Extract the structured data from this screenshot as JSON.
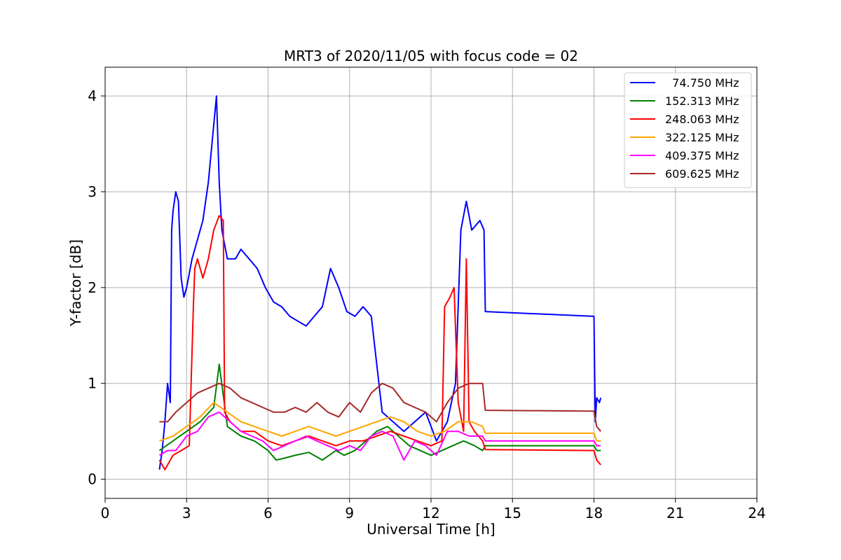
{
  "chart_data": {
    "type": "line",
    "title": "MRT3 of 2020/11/05 with focus code = 02",
    "xlabel": "Universal Time [h]",
    "ylabel": "Y-factor [dB]",
    "xlim": [
      0,
      24
    ],
    "ylim": [
      -0.2,
      4.3
    ],
    "xticks": [
      0,
      3,
      6,
      9,
      12,
      15,
      18,
      21,
      24
    ],
    "yticks": [
      0,
      1,
      2,
      3,
      4
    ],
    "grid": true,
    "legend_position": "top-right",
    "series": [
      {
        "name": "  74.750 MHz",
        "color": "#0000ff",
        "x": [
          2.0,
          2.1,
          2.2,
          2.3,
          2.4,
          2.45,
          2.5,
          2.6,
          2.7,
          2.8,
          2.9,
          3.0,
          3.2,
          3.4,
          3.6,
          3.8,
          4.0,
          4.1,
          4.2,
          4.3,
          4.5,
          4.8,
          5.0,
          5.3,
          5.6,
          5.9,
          6.2,
          6.5,
          6.8,
          7.1,
          7.4,
          7.7,
          8.0,
          8.3,
          8.6,
          8.9,
          9.2,
          9.5,
          9.8,
          10.2,
          10.6,
          11.0,
          11.4,
          11.8,
          12.2,
          12.6,
          12.9,
          13.1,
          13.3,
          13.5,
          13.8,
          13.95,
          14.0,
          18.0,
          18.05,
          18.1,
          18.2,
          18.25
        ],
        "y": [
          0.1,
          0.3,
          0.6,
          1.0,
          0.8,
          2.6,
          2.8,
          3.0,
          2.9,
          2.1,
          1.9,
          2.0,
          2.3,
          2.5,
          2.7,
          3.1,
          3.7,
          4.0,
          3.1,
          2.6,
          2.3,
          2.3,
          2.4,
          2.3,
          2.2,
          2.0,
          1.85,
          1.8,
          1.7,
          1.65,
          1.6,
          1.7,
          1.8,
          2.2,
          2.0,
          1.75,
          1.7,
          1.8,
          1.7,
          0.7,
          0.6,
          0.5,
          0.6,
          0.7,
          0.4,
          0.6,
          1.0,
          2.6,
          2.9,
          2.6,
          2.7,
          2.6,
          1.75,
          1.7,
          0.6,
          0.85,
          0.8,
          0.85
        ]
      },
      {
        "name": "152.313 MHz",
        "color": "#008000",
        "x": [
          2.0,
          2.5,
          3.0,
          3.5,
          4.0,
          4.2,
          4.5,
          5.0,
          5.5,
          6.0,
          6.3,
          6.6,
          7.0,
          7.5,
          8.0,
          8.5,
          8.8,
          9.2,
          9.6,
          10.0,
          10.4,
          10.8,
          11.2,
          11.6,
          12.0,
          12.4,
          12.8,
          13.2,
          13.6,
          13.9,
          14.0,
          18.0,
          18.1,
          18.25
        ],
        "y": [
          0.3,
          0.4,
          0.5,
          0.6,
          0.75,
          1.2,
          0.55,
          0.45,
          0.4,
          0.3,
          0.2,
          0.22,
          0.25,
          0.28,
          0.2,
          0.3,
          0.25,
          0.3,
          0.4,
          0.5,
          0.55,
          0.45,
          0.35,
          0.3,
          0.25,
          0.3,
          0.35,
          0.4,
          0.35,
          0.3,
          0.35,
          0.35,
          0.3,
          0.3
        ]
      },
      {
        "name": "248.063 MHz",
        "color": "#ff0000",
        "x": [
          2.0,
          2.2,
          2.5,
          2.8,
          3.1,
          3.25,
          3.3,
          3.4,
          3.6,
          3.8,
          4.0,
          4.2,
          4.35,
          4.4,
          4.6,
          5.0,
          5.5,
          6.0,
          6.5,
          7.0,
          7.5,
          8.0,
          8.5,
          9.0,
          9.5,
          10.0,
          10.5,
          11.0,
          11.5,
          12.0,
          12.4,
          12.5,
          12.7,
          12.85,
          13.0,
          13.2,
          13.3,
          13.4,
          13.6,
          13.9,
          14.0,
          18.0,
          18.1,
          18.25
        ],
        "y": [
          0.2,
          0.1,
          0.25,
          0.3,
          0.35,
          1.8,
          2.2,
          2.3,
          2.1,
          2.3,
          2.6,
          2.75,
          2.7,
          0.7,
          0.6,
          0.5,
          0.5,
          0.4,
          0.35,
          0.4,
          0.45,
          0.4,
          0.35,
          0.4,
          0.4,
          0.45,
          0.5,
          0.45,
          0.4,
          0.35,
          0.4,
          1.8,
          1.9,
          2.0,
          0.8,
          0.5,
          2.3,
          0.6,
          0.5,
          0.4,
          0.31,
          0.3,
          0.2,
          0.15
        ]
      },
      {
        "name": "322.125 MHz",
        "color": "#ffa500",
        "x": [
          2.0,
          2.5,
          3.0,
          3.5,
          4.0,
          4.5,
          5.0,
          5.5,
          6.0,
          6.5,
          7.0,
          7.5,
          8.0,
          8.5,
          9.0,
          9.5,
          10.0,
          10.5,
          11.0,
          11.5,
          12.0,
          12.5,
          13.0,
          13.5,
          13.9,
          14.0,
          18.0,
          18.1,
          18.25
        ],
        "y": [
          0.4,
          0.45,
          0.55,
          0.65,
          0.8,
          0.7,
          0.6,
          0.55,
          0.5,
          0.45,
          0.5,
          0.55,
          0.5,
          0.45,
          0.5,
          0.55,
          0.6,
          0.65,
          0.6,
          0.5,
          0.45,
          0.5,
          0.6,
          0.6,
          0.55,
          0.48,
          0.48,
          0.4,
          0.4
        ]
      },
      {
        "name": "409.375 MHz",
        "color": "#ff00ff",
        "x": [
          2.0,
          2.3,
          2.6,
          3.0,
          3.4,
          3.8,
          4.2,
          4.6,
          5.0,
          5.4,
          5.8,
          6.2,
          6.6,
          7.0,
          7.4,
          7.8,
          8.2,
          8.6,
          9.0,
          9.4,
          9.8,
          10.2,
          10.6,
          11.0,
          11.4,
          11.8,
          12.2,
          12.6,
          13.0,
          13.4,
          13.9,
          14.0,
          18.0,
          18.1,
          18.25
        ],
        "y": [
          0.25,
          0.3,
          0.3,
          0.45,
          0.5,
          0.65,
          0.7,
          0.6,
          0.5,
          0.45,
          0.4,
          0.3,
          0.35,
          0.4,
          0.45,
          0.4,
          0.35,
          0.3,
          0.35,
          0.3,
          0.45,
          0.5,
          0.45,
          0.2,
          0.4,
          0.35,
          0.25,
          0.5,
          0.5,
          0.45,
          0.45,
          0.4,
          0.4,
          0.35,
          0.35
        ]
      },
      {
        "name": "609.625 MHz",
        "color": "#a52a2a",
        "x": [
          2.0,
          2.3,
          2.6,
          3.0,
          3.4,
          3.8,
          4.2,
          4.6,
          5.0,
          5.4,
          5.8,
          6.2,
          6.6,
          7.0,
          7.4,
          7.8,
          8.2,
          8.6,
          9.0,
          9.4,
          9.8,
          10.2,
          10.6,
          11.0,
          11.4,
          11.8,
          12.2,
          12.6,
          13.0,
          13.4,
          13.9,
          14.0,
          18.0,
          18.1,
          18.25
        ],
        "y": [
          0.6,
          0.6,
          0.7,
          0.8,
          0.9,
          0.95,
          1.0,
          0.95,
          0.85,
          0.8,
          0.75,
          0.7,
          0.7,
          0.75,
          0.7,
          0.8,
          0.7,
          0.65,
          0.8,
          0.7,
          0.9,
          1.0,
          0.95,
          0.8,
          0.75,
          0.7,
          0.6,
          0.8,
          0.95,
          1.0,
          1.0,
          0.72,
          0.71,
          0.55,
          0.5
        ]
      }
    ]
  }
}
